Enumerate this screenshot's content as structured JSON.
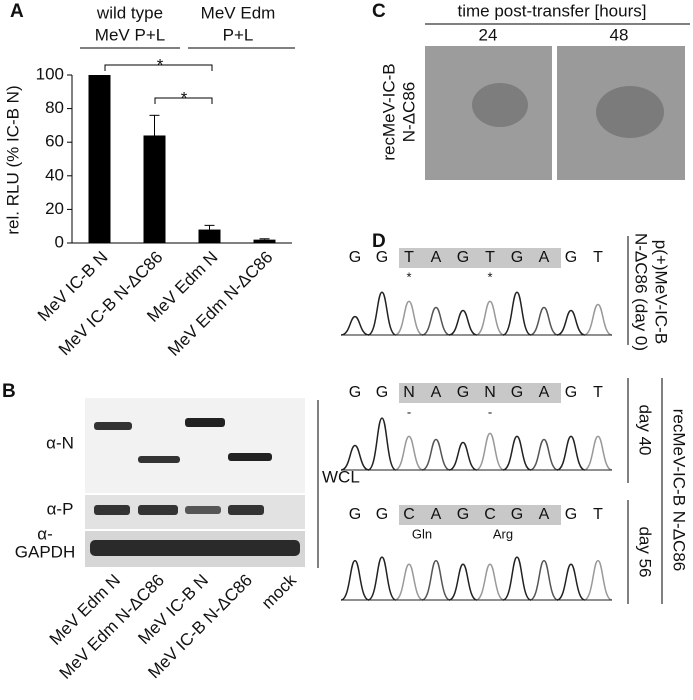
{
  "chart_data": {
    "type": "bar",
    "panel": "A",
    "categories": [
      "MeV IC-B N",
      "MeV IC-B N-ΔC86",
      "MeV Edm N",
      "MeV Edm N-ΔC86"
    ],
    "values": [
      100,
      64,
      8,
      2
    ],
    "errors": [
      null,
      12,
      2.5,
      0.5
    ],
    "color": "#000000",
    "y_label": "rel. RLU (% IC-B N)",
    "ylim": [
      0,
      100
    ],
    "yticks": [
      0,
      20,
      40,
      60,
      80,
      100
    ],
    "groups": [
      [
        "wild type",
        "MeV P+L"
      ],
      [
        "MeV Edm",
        "P+L"
      ]
    ],
    "significance": [
      "*",
      "*"
    ]
  },
  "panel_b": {
    "label": "B",
    "rows": [
      [
        "α-N"
      ],
      [
        "α-P"
      ],
      [
        "α-",
        "GAPDH"
      ]
    ],
    "side": "WCL",
    "lanes": [
      "MeV Edm N",
      "MeV Edm N-ΔC86",
      "MeV IC-B N",
      "MeV IC-B N-ΔC86",
      "mock"
    ]
  },
  "panel_c": {
    "label": "C",
    "header": "time post-transfer [hours]",
    "times": [
      "24",
      "48"
    ],
    "sample": [
      "recMeV-IC-B",
      "N-ΔC86"
    ]
  },
  "panel_d": {
    "label": "D",
    "traces": [
      {
        "bases": [
          "G",
          "G",
          "T",
          "A",
          "G",
          "T",
          "G",
          "A",
          "G",
          "T"
        ],
        "marks": [
          "*",
          "*"
        ],
        "label": [
          "p(+)MeV-IC-B",
          "N-ΔC86 (day 0)"
        ]
      },
      {
        "bases": [
          "G",
          "G",
          "N",
          "A",
          "G",
          "N",
          "G",
          "A",
          "G",
          "T"
        ],
        "marks": [
          "-",
          "-"
        ],
        "label": [
          "day 40"
        ]
      },
      {
        "bases": [
          "G",
          "G",
          "C",
          "A",
          "G",
          "C",
          "G",
          "A",
          "G",
          "T"
        ],
        "marks": [
          "Gln",
          "Arg"
        ],
        "label": [
          "day 56"
        ]
      }
    ],
    "sample": "recMeV-IC-B N-ΔC86"
  }
}
